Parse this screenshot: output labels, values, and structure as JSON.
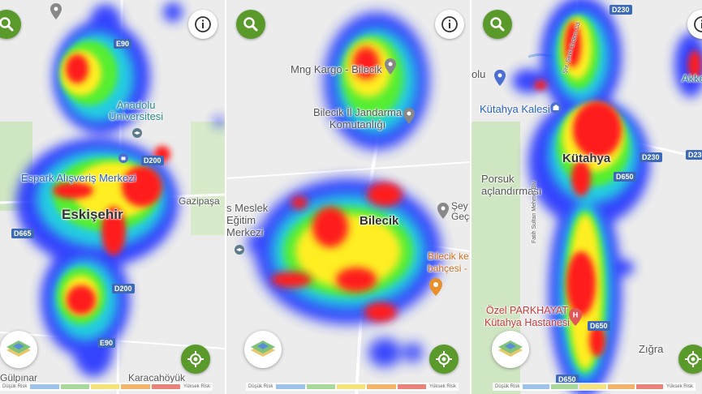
{
  "legend": {
    "low": "Düşük Risk",
    "high": "Yüksek Risk",
    "colors": [
      "#9fc3e8",
      "#a8d89a",
      "#f4e27a",
      "#f2b36b",
      "#e8837a"
    ]
  },
  "colors": {
    "accent_green": "#5a9a2a",
    "road_blue": "#3d6ab8",
    "heat_red": "#ff1a1a",
    "heat_blue": "#2233ff"
  },
  "icons": [
    "search-icon",
    "info-icon",
    "layers-icon",
    "locate-icon",
    "pin-icon",
    "graduation-cap-icon",
    "shopping-bag-icon",
    "hospital-icon",
    "museum-icon"
  ],
  "panels": [
    {
      "id": "eskisehir",
      "labels": {
        "city": "Eskişehir",
        "university": "Anadolu\nÜniversitesi",
        "mall": "Espark Alışveriş Merkezi",
        "gazipasa": "Gazipaşa",
        "gulpinar": "Gülpınar",
        "karacahoyuk": "Karacahöyük"
      },
      "roads": [
        "E90",
        "D200",
        "D665",
        "D200",
        "E90"
      ]
    },
    {
      "id": "bilecik",
      "labels": {
        "city": "Bilecik",
        "cargo": "Mng Kargo - Bilecik",
        "gendarmerie": "Bilecik İl Jandarma\nKomutanlığı",
        "school": "s Meslek\nEğitim\nMerkezi",
        "seyh": "Şey\nGeçi",
        "garden": "Bilecik ke\nbahçesi -"
      }
    },
    {
      "id": "kutahya",
      "labels": {
        "city": "Kütahya",
        "castle": "Kütahya Kalesi",
        "olu": "olu",
        "porsuk": "Porsuk\naçlandırması",
        "hospital": "Özel PARKHAYAT\nKütahya Hastanesi",
        "zigra": "Zığra",
        "akke": "Akke",
        "street1": "Fatih Sultan Mehmet Blv.",
        "street2": "Şht. Şevki Erdem Cd."
      },
      "roads": [
        "D230",
        "D230",
        "D650",
        "D650",
        "D650",
        "D230"
      ]
    }
  ]
}
